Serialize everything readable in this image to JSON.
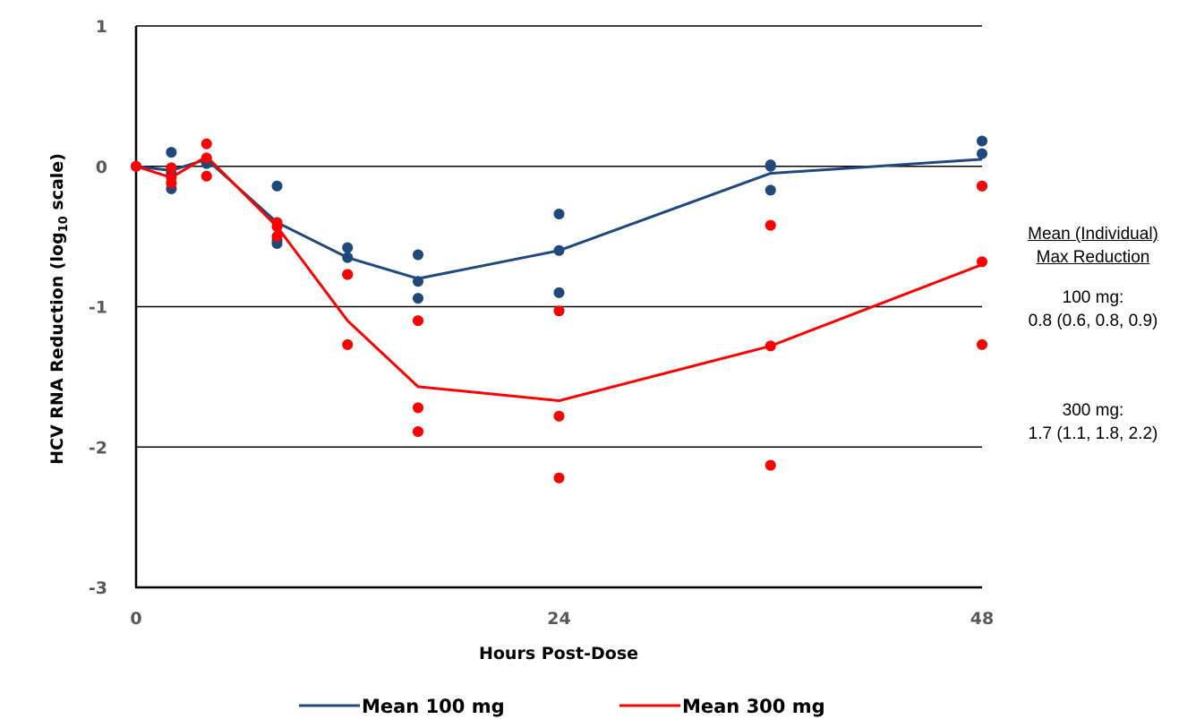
{
  "chart_data": {
    "type": "line",
    "title": "",
    "xlabel": "Hours Post-Dose",
    "ylabel": "HCV RNA Reduction (log10 scale)",
    "ylabel_main": "HCV RNA Reduction (log",
    "ylabel_sub": "10",
    "ylabel_tail": " scale)",
    "xlim": [
      0,
      48
    ],
    "ylim": [
      -3,
      1
    ],
    "x_ticks": [
      0,
      24,
      48
    ],
    "y_ticks": [
      1,
      0,
      -1,
      -2,
      -3
    ],
    "gridlines_y": [
      1,
      0,
      -1,
      -2
    ],
    "legend_position": "bottom",
    "series": [
      {
        "name": "Mean 100 mg",
        "color": "#1F497D",
        "x": [
          0,
          2,
          4,
          8,
          12,
          16,
          24,
          36,
          48
        ],
        "y": [
          0,
          -0.03,
          0.05,
          -0.4,
          -0.65,
          -0.8,
          -0.6,
          -0.05,
          0.05
        ],
        "individual": [
          [
            0,
            0
          ],
          [
            2,
            0.1
          ],
          [
            2,
            -0.05
          ],
          [
            2,
            -0.16
          ],
          [
            4,
            0.03
          ],
          [
            4,
            0.02
          ],
          [
            8,
            -0.14
          ],
          [
            8,
            -0.53
          ],
          [
            8,
            -0.55
          ],
          [
            12,
            -0.58
          ],
          [
            12,
            -0.65
          ],
          [
            12,
            -0.77
          ],
          [
            16,
            -0.63
          ],
          [
            16,
            -0.82
          ],
          [
            16,
            -0.94
          ],
          [
            24,
            -0.34
          ],
          [
            24,
            -0.6
          ],
          [
            24,
            -0.9
          ],
          [
            36,
            0.0
          ],
          [
            36,
            0.01
          ],
          [
            36,
            -0.17
          ],
          [
            48,
            0.18
          ],
          [
            48,
            0.09
          ],
          [
            48,
            -0.14
          ]
        ]
      },
      {
        "name": "Mean 300 mg",
        "color": "#FF0000",
        "x": [
          0,
          2,
          4,
          8,
          12,
          16,
          24,
          36,
          48
        ],
        "y": [
          0,
          -0.08,
          0.07,
          -0.43,
          -1.1,
          -1.57,
          -1.67,
          -1.28,
          -0.7
        ],
        "individual": [
          [
            0,
            0
          ],
          [
            2,
            -0.01
          ],
          [
            2,
            -0.08
          ],
          [
            2,
            -0.12
          ],
          [
            4,
            0.16
          ],
          [
            4,
            0.06
          ],
          [
            4,
            -0.07
          ],
          [
            8,
            -0.4
          ],
          [
            8,
            -0.43
          ],
          [
            8,
            -0.5
          ],
          [
            12,
            -0.77
          ],
          [
            12,
            -1.27
          ],
          [
            16,
            -1.1
          ],
          [
            16,
            -1.72
          ],
          [
            16,
            -1.89
          ],
          [
            24,
            -1.03
          ],
          [
            24,
            -1.78
          ],
          [
            24,
            -2.22
          ],
          [
            36,
            -0.42
          ],
          [
            36,
            -1.28
          ],
          [
            36,
            -2.13
          ],
          [
            48,
            -0.14
          ],
          [
            48,
            -0.68
          ],
          [
            48,
            -1.27
          ]
        ]
      }
    ]
  },
  "annotation": {
    "heading_line1": "Mean (Individual)",
    "heading_line2": "Max Reduction",
    "dose1_label": "100 mg:",
    "dose1_values": "0.8 (0.6, 0.8, 0.9)",
    "dose2_label": "300 mg:",
    "dose2_values": "1.7 (1.1, 1.8, 2.2)"
  }
}
